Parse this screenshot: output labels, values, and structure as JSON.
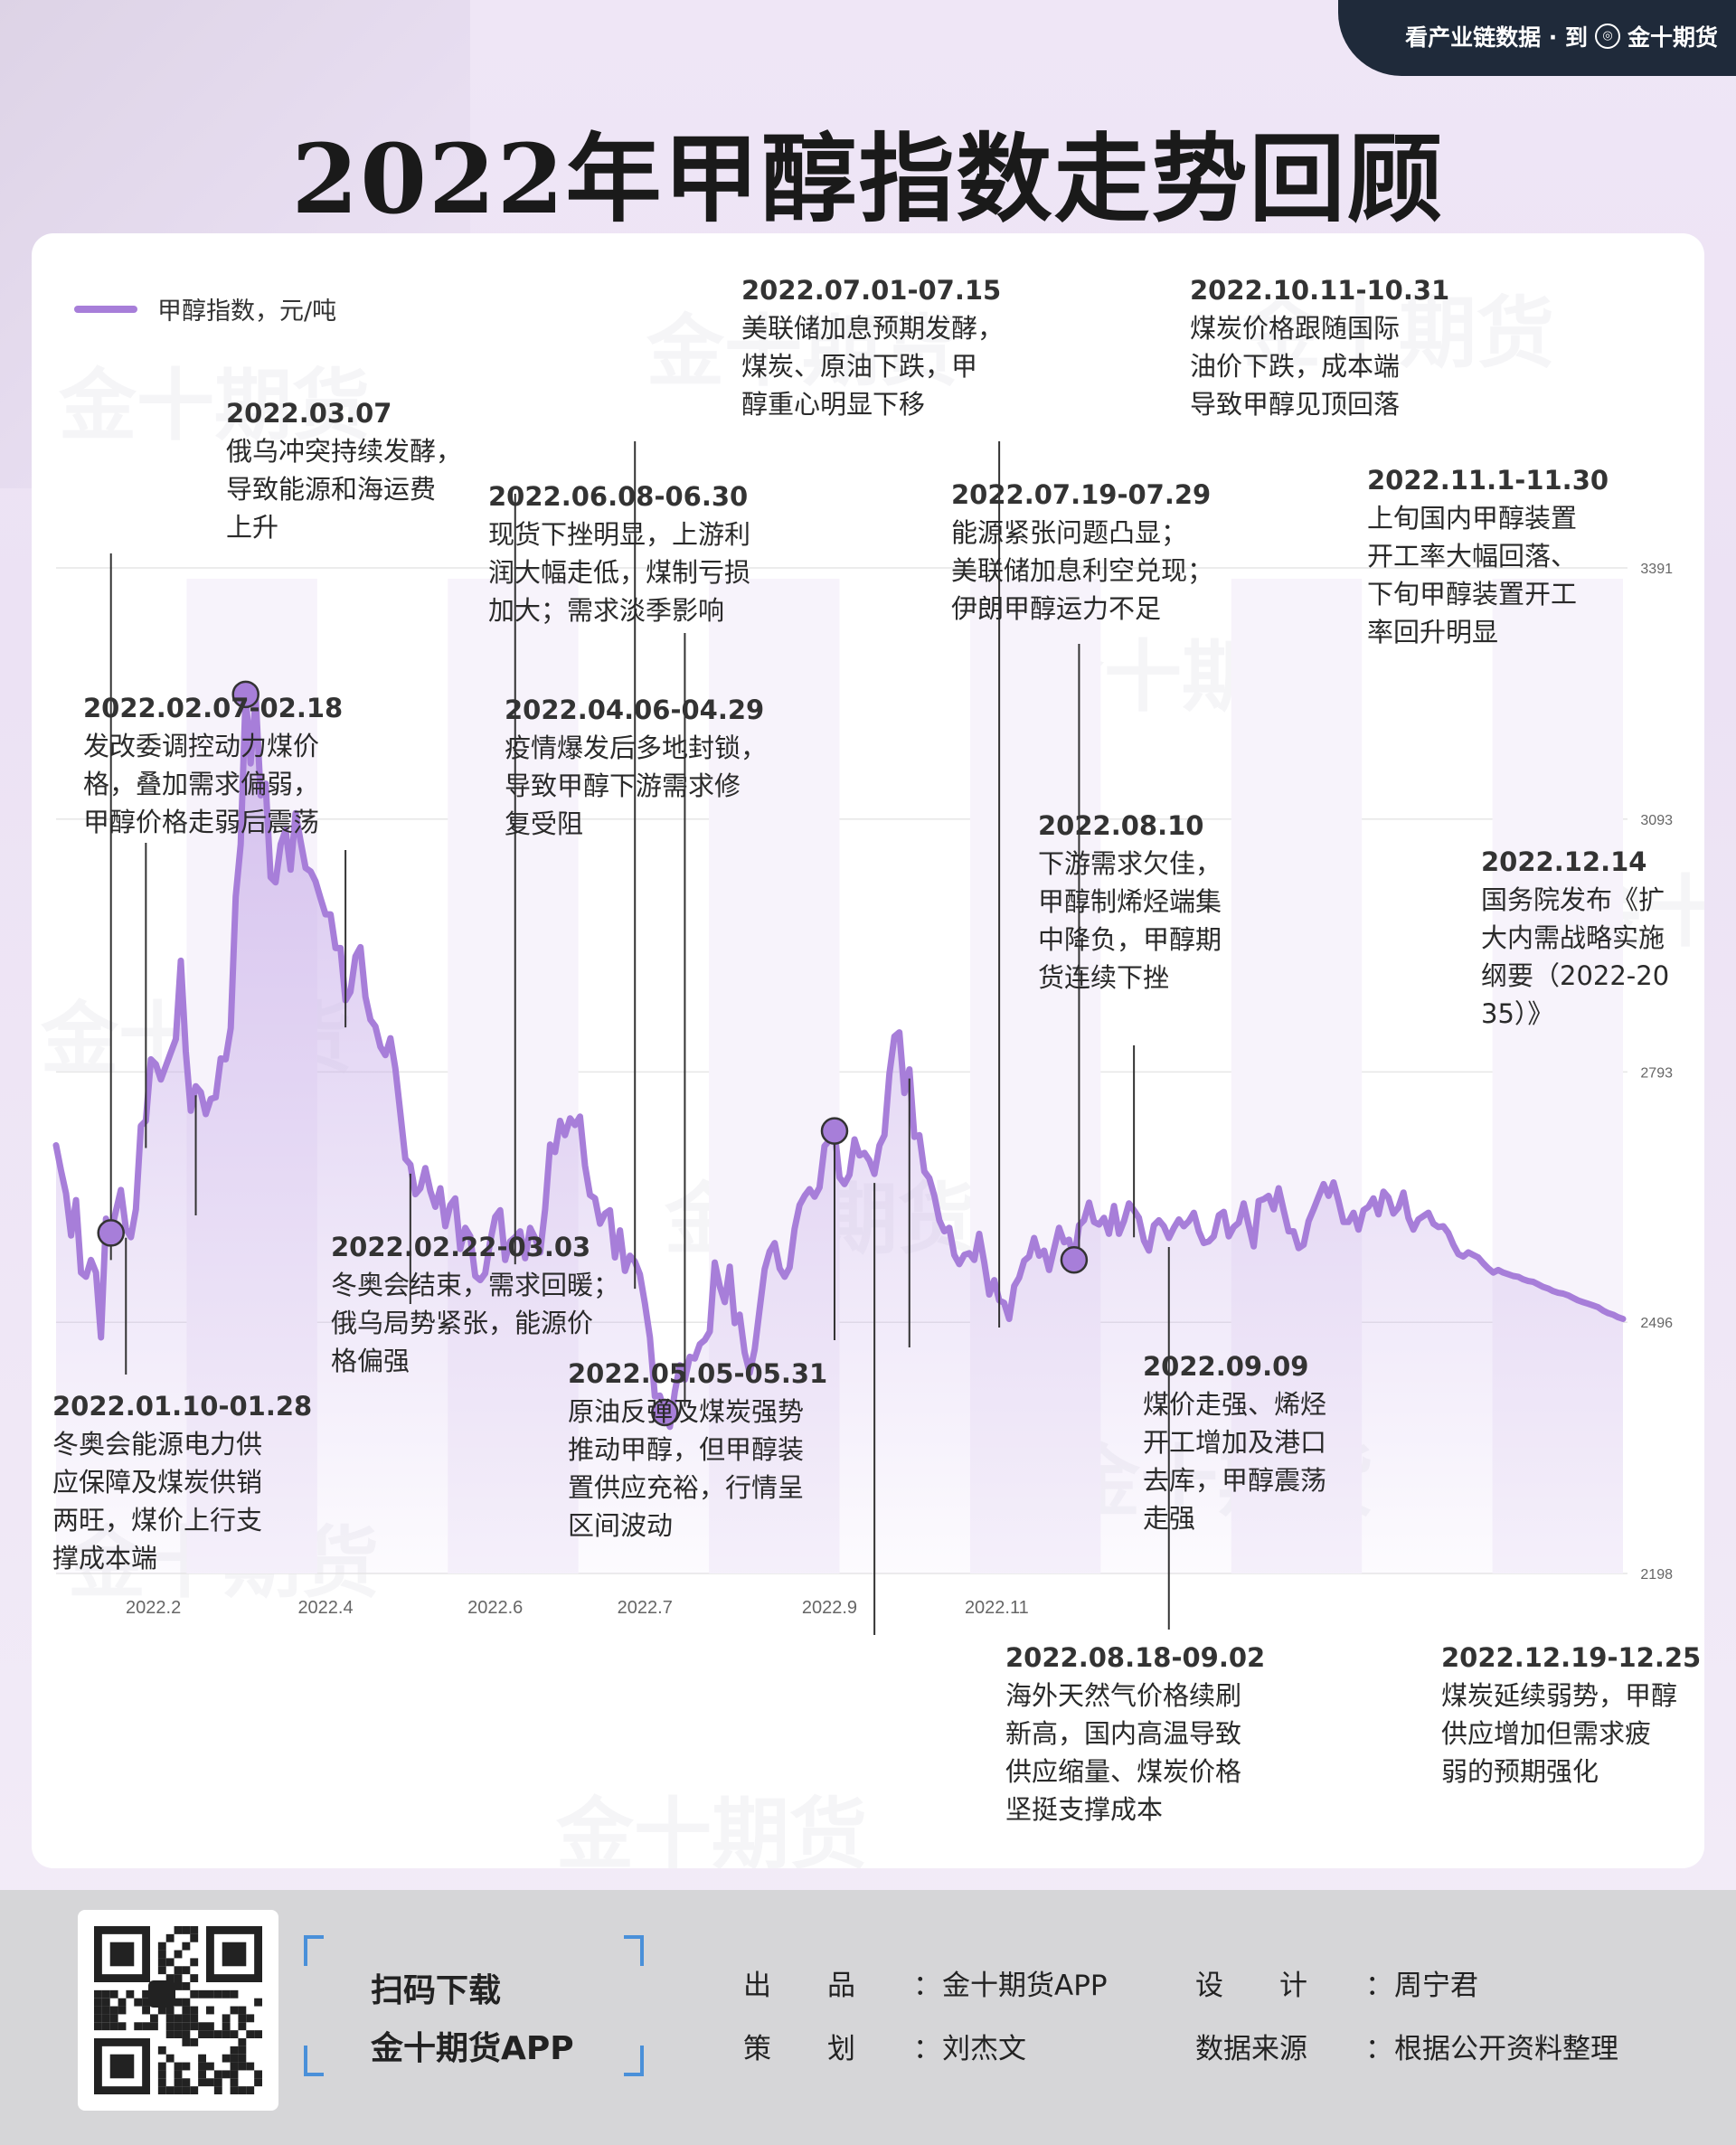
{
  "header": {
    "slogan": "看产业链数据 · 到",
    "brand": "金十期货"
  },
  "page_title": "2022年甲醇指数走势回顾",
  "watermark": "金十期货",
  "chart_data": {
    "type": "line",
    "legend": "甲醇指数，元/吨",
    "ylim": [
      2198,
      3391
    ],
    "yticks": [
      "3391",
      "3093",
      "2793",
      "2496",
      "2198"
    ],
    "ytick_values": [
      3391,
      3093,
      2793,
      2496,
      2198
    ],
    "xticks": [
      "2022.2",
      "2022.4",
      "2022.6",
      "2022.7",
      "2022.9",
      "2022.11"
    ],
    "xtick_positions": [
      19.5,
      54,
      88,
      118,
      155,
      188.5
    ],
    "series": [
      {
        "values": [
          2706,
          2676,
          2649,
          2599,
          2641,
          2555,
          2550,
          2570,
          2555,
          2478,
          2619,
          2602,
          2628,
          2653,
          2607,
          2597,
          2630,
          2729,
          2735,
          2808,
          2802,
          2784,
          2800,
          2816,
          2832,
          2925,
          2817,
          2747,
          2776,
          2769,
          2743,
          2761,
          2763,
          2809,
          2808,
          2845,
          3001,
          3063,
          3241,
          3159,
          3237,
          3121,
          3135,
          3024,
          3018,
          3063,
          3080,
          3033,
          3100,
          3067,
          3035,
          3031,
          3019,
          2999,
          2980,
          2980,
          2940,
          2940,
          2878,
          2888,
          2930,
          2941,
          2882,
          2855,
          2847,
          2823,
          2813,
          2833,
          2797,
          2744,
          2690,
          2683,
          2648,
          2655,
          2679,
          2652,
          2633,
          2655,
          2610,
          2635,
          2643,
          2583,
          2608,
          2598,
          2551,
          2546,
          2554,
          2592,
          2621,
          2629,
          2570,
          2592,
          2597,
          2604,
          2572,
          2608,
          2596,
          2579,
          2630,
          2707,
          2698,
          2735,
          2718,
          2738,
          2730,
          2740,
          2682,
          2647,
          2643,
          2613,
          2625,
          2629,
          2573,
          2605,
          2557,
          2575,
          2568,
          2553,
          2518,
          2478,
          2408,
          2409,
          2389,
          2372,
          2414,
          2445,
          2428,
          2455,
          2453,
          2470,
          2475,
          2485,
          2567,
          2539,
          2520,
          2562,
          2495,
          2505,
          2460,
          2436,
          2464,
          2512,
          2559,
          2580,
          2590,
          2560,
          2550,
          2561,
          2607,
          2635,
          2646,
          2654,
          2645,
          2656,
          2705,
          2712,
          2723,
          2668,
          2660,
          2671,
          2713,
          2694,
          2697,
          2688,
          2672,
          2706,
          2718,
          2791,
          2835,
          2840,
          2768,
          2796,
          2716,
          2718,
          2675,
          2667,
          2646,
          2617,
          2604,
          2608,
          2576,
          2565,
          2576,
          2578,
          2570,
          2601,
          2567,
          2529,
          2546,
          2522,
          2519,
          2500,
          2539,
          2549,
          2569,
          2574,
          2596,
          2575,
          2581,
          2558,
          2583,
          2608,
          2591,
          2594,
          2570,
          2611,
          2617,
          2638,
          2615,
          2612,
          2620,
          2601,
          2634,
          2601,
          2616,
          2637,
          2629,
          2620,
          2593,
          2581,
          2611,
          2617,
          2610,
          2596,
          2608,
          2618,
          2610,
          2616,
          2626,
          2604,
          2590,
          2592,
          2598,
          2623,
          2627,
          2598,
          2609,
          2614,
          2637,
          2611,
          2586,
          2640,
          2642,
          2646,
          2630,
          2655,
          2629,
          2604,
          2604,
          2584,
          2588,
          2616,
          2630,
          2645,
          2660,
          2646,
          2662,
          2640,
          2615,
          2615,
          2626,
          2606,
          2629,
          2633,
          2643,
          2624,
          2651,
          2644,
          2625,
          2632,
          2650,
          2620,
          2606,
          2618,
          2622,
          2626,
          2613,
          2609,
          2610,
          2602,
          2588,
          2577,
          2574,
          2579,
          2576,
          2573,
          2566,
          2560,
          2555,
          2558,
          2555,
          2553,
          2551,
          2550,
          2547,
          2545,
          2544,
          2541,
          2538,
          2536,
          2533,
          2531,
          2530,
          2528,
          2525,
          2522,
          2520,
          2518,
          2516,
          2514,
          2510,
          2507,
          2505,
          2502,
          2500
        ]
      }
    ],
    "markers": [
      11,
      38,
      122,
      156,
      204
    ]
  },
  "annotations": [
    {
      "date": "2022.03.07",
      "text": "俄乌冲突持续发酵，\n导致能源和海运费\n上升"
    },
    {
      "date": "2022.02.07-02.18",
      "text": "发改委调控动力煤价\n格，叠加需求偏弱，\n甲醇价格走弱后震荡"
    },
    {
      "date": "2022.01.10-01.28",
      "text": "冬奥会能源电力供\n应保障及煤炭供销\n两旺，煤价上行支\n撑成本端"
    },
    {
      "date": "2022.02.22-03.03",
      "text": "冬奥会结束，需求回暖；\n俄乌局势紧张，能源价\n格偏强"
    },
    {
      "date": "2022.06.08-06.30",
      "text": "现货下挫明显，上游利\n润大幅走低，煤制亏损\n加大；需求淡季影响"
    },
    {
      "date": "2022.04.06-04.29",
      "text": "疫情爆发后多地封锁，\n导致甲醇下游需求修\n复受阻"
    },
    {
      "date": "2022.05.05-05.31",
      "text": "原油反弹及煤炭强势\n推动甲醇，但甲醇装\n置供应充裕，行情呈\n区间波动"
    },
    {
      "date": "2022.07.01-07.15",
      "text": "美联储加息预期发酵，\n煤炭、原油下跌，甲\n醇重心明显下移"
    },
    {
      "date": "2022.07.19-07.29",
      "text": "能源紧张问题凸显；\n美联储加息利空兑现；\n伊朗甲醇运力不足"
    },
    {
      "date": "2022.08.10",
      "text": "下游需求欠佳，\n甲醇制烯烃端集\n中降负，甲醇期\n货连续下挫"
    },
    {
      "date": "2022.08.18-09.02",
      "text": "海外天然气价格续刷\n新高，国内高温导致\n供应缩量、煤炭价格\n坚挺支撑成本"
    },
    {
      "date": "2022.09.09",
      "text": "煤价走强、烯烃\n开工增加及港口\n去库，甲醇震荡\n走强"
    },
    {
      "date": "2022.10.11-10.31",
      "text": "煤炭价格跟随国际\n油价下跌，成本端\n导致甲醇见顶回落"
    },
    {
      "date": "2022.11.1-11.30",
      "text": "上旬国内甲醇装置\n开工率大幅回落、\n下旬甲醇装置开工\n率回升明显"
    },
    {
      "date": "2022.12.14",
      "text": "国务院发布《扩\n大内需战略实施\n纲要（2022-20\n35）》"
    },
    {
      "date": "2022.12.19-12.25",
      "text": "煤炭延续弱势，甲醇\n供应增加但需求疲\n弱的预期强化"
    }
  ],
  "footer": {
    "scan_line1": "扫码下载",
    "scan_line2": "金十期货APP",
    "produce_label": "出　　品",
    "produce_value": "金十期货APP",
    "design_label": "设　　计",
    "design_value": "周宁君",
    "plan_label": "策　　划",
    "plan_value": "刘杰文",
    "source_label": "数据来源",
    "source_value": "根据公开资料整理",
    "colon": "："
  },
  "colors": {
    "line": "#a77ed9",
    "fill": "#c8aee9",
    "title": "#1a1a1a",
    "band": "#1f2a3a"
  }
}
